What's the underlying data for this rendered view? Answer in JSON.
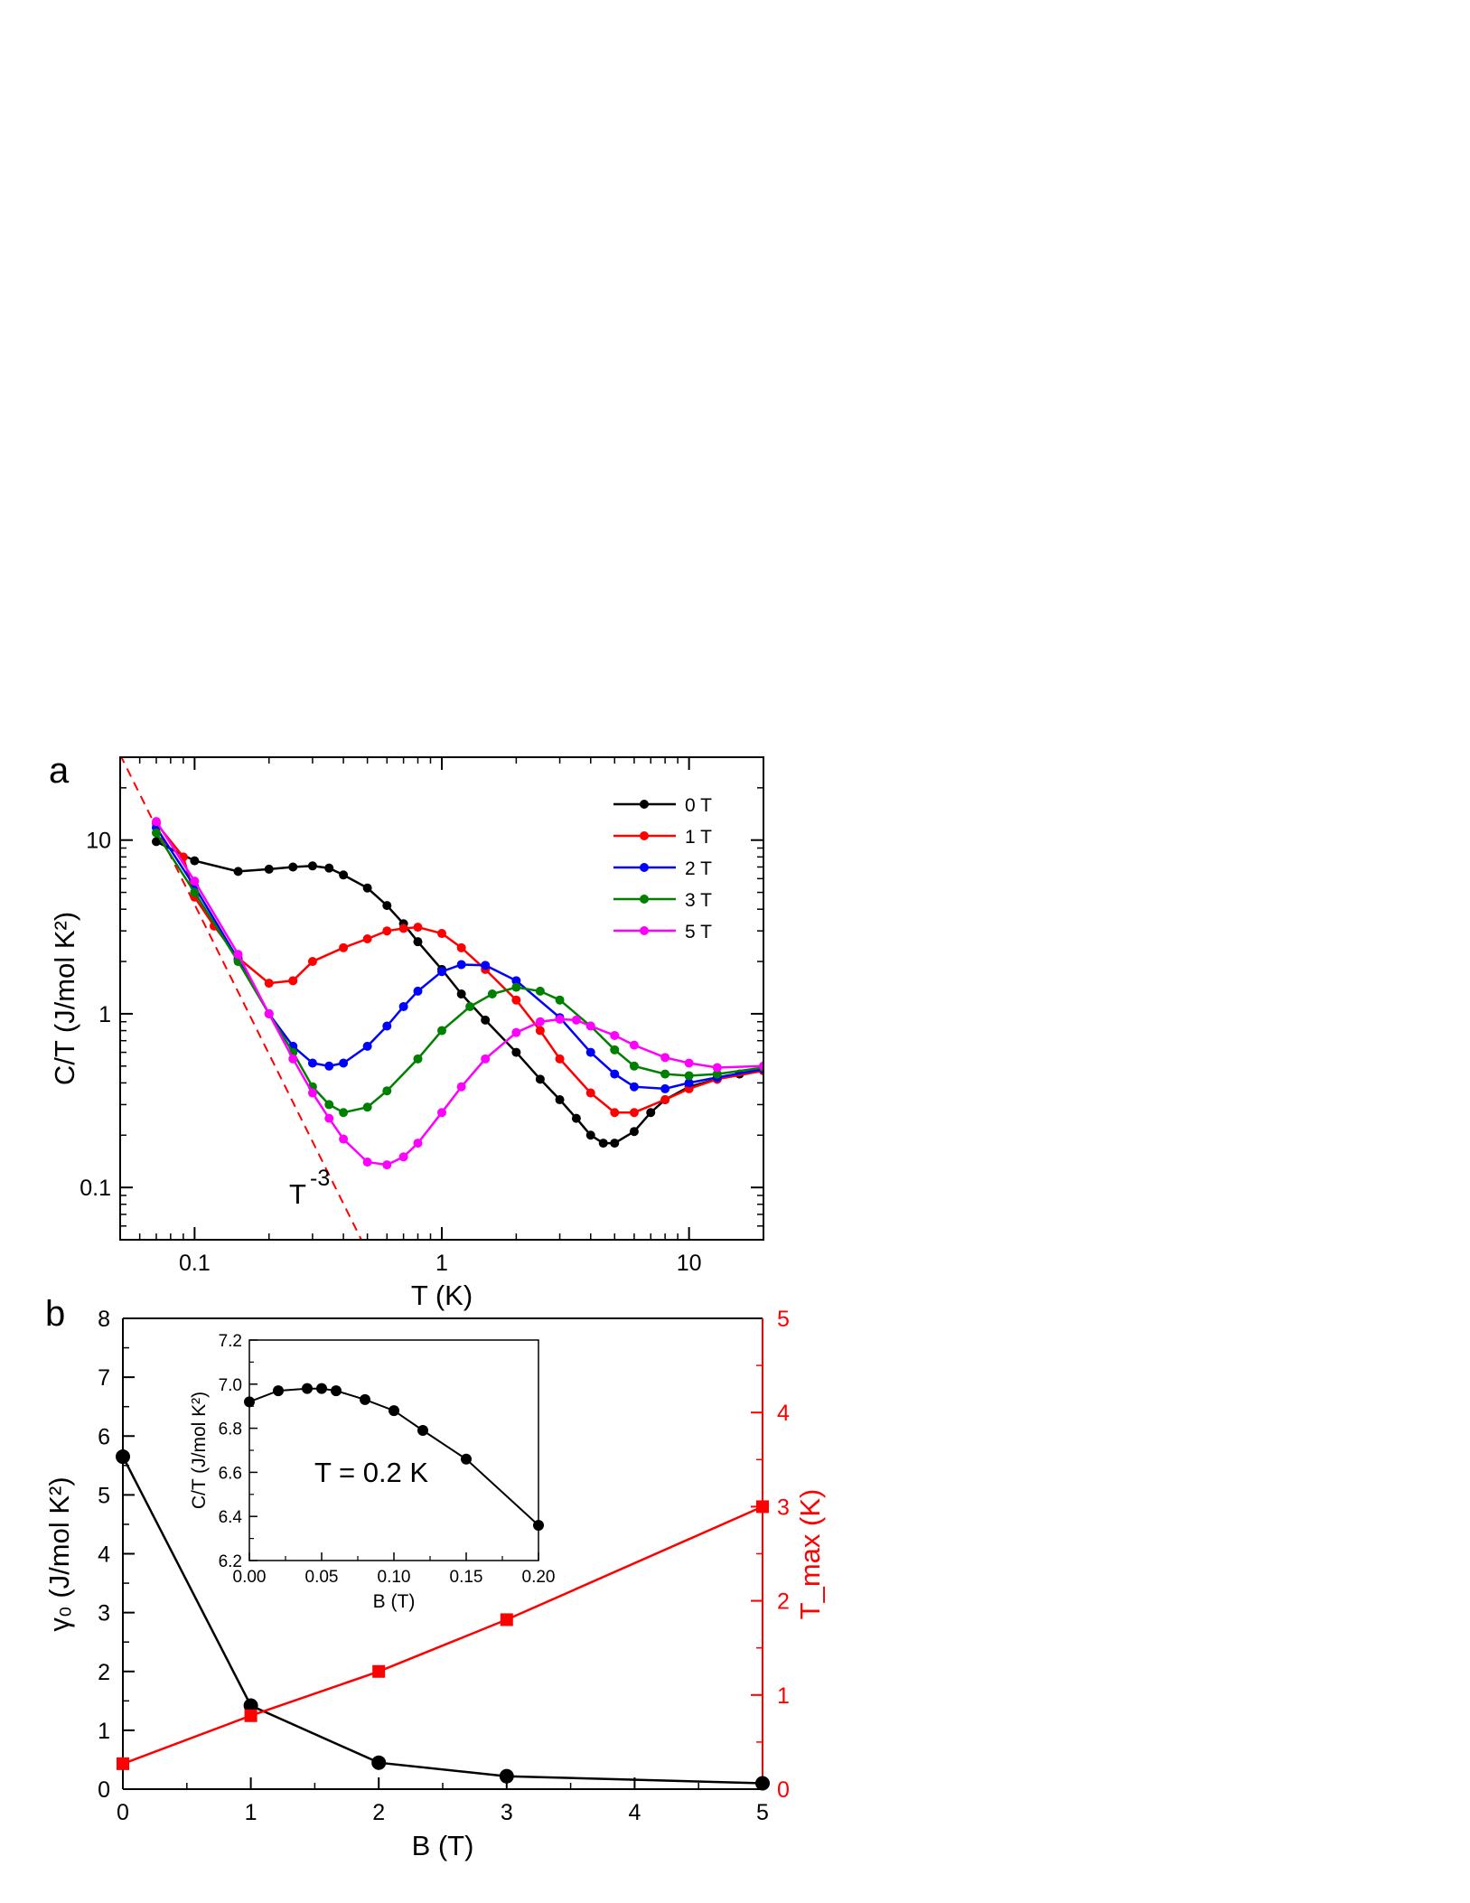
{
  "chart_data": [
    {
      "panel": "a",
      "type": "line",
      "xlabel": "T (K)",
      "ylabel": "C/T (J/mol K²)",
      "xscale": "log",
      "yscale": "log",
      "xlim": [
        0.05,
        20
      ],
      "ylim": [
        0.05,
        30
      ],
      "xtick_labels": [
        "0.1",
        "1",
        "10"
      ],
      "ytick_labels": [
        "0.1",
        "1",
        "10"
      ],
      "legend_position": "top-right",
      "annotation": {
        "text": "T",
        "superscript": "-3"
      },
      "fit_line": {
        "description": "power law",
        "exponent": -3,
        "style": "dashed",
        "color": "#ff0000",
        "x": [
          0.05,
          0.62
        ],
        "y": [
          31,
          0.023
        ]
      },
      "series": [
        {
          "name": "0 T",
          "color": "#000000",
          "points": [
            [
              0.07,
              9.8
            ],
            [
              0.1,
              7.6
            ],
            [
              0.15,
              6.6
            ],
            [
              0.2,
              6.8
            ],
            [
              0.25,
              7.0
            ],
            [
              0.3,
              7.1
            ],
            [
              0.35,
              6.9
            ],
            [
              0.4,
              6.3
            ],
            [
              0.5,
              5.3
            ],
            [
              0.6,
              4.2
            ],
            [
              0.7,
              3.3
            ],
            [
              0.8,
              2.6
            ],
            [
              1.0,
              1.8
            ],
            [
              1.2,
              1.3
            ],
            [
              1.5,
              0.92
            ],
            [
              2.0,
              0.6
            ],
            [
              2.5,
              0.42
            ],
            [
              3.0,
              0.32
            ],
            [
              3.5,
              0.25
            ],
            [
              4.0,
              0.2
            ],
            [
              4.5,
              0.18
            ],
            [
              5.0,
              0.18
            ],
            [
              6.0,
              0.21
            ],
            [
              7.0,
              0.27
            ],
            [
              8.0,
              0.32
            ],
            [
              10.0,
              0.38
            ],
            [
              13.0,
              0.42
            ],
            [
              16.0,
              0.45
            ],
            [
              20.0,
              0.47
            ]
          ]
        },
        {
          "name": "1 T",
          "color": "#ff0000",
          "points": [
            [
              0.07,
              12.5
            ],
            [
              0.09,
              8.0
            ],
            [
              0.1,
              4.7
            ],
            [
              0.12,
              3.2
            ],
            [
              0.15,
              2.1
            ],
            [
              0.2,
              1.5
            ],
            [
              0.25,
              1.55
            ],
            [
              0.3,
              2.0
            ],
            [
              0.4,
              2.4
            ],
            [
              0.5,
              2.7
            ],
            [
              0.6,
              3.0
            ],
            [
              0.7,
              3.1
            ],
            [
              0.8,
              3.15
            ],
            [
              1.0,
              2.9
            ],
            [
              1.2,
              2.4
            ],
            [
              1.5,
              1.8
            ],
            [
              2.0,
              1.2
            ],
            [
              2.5,
              0.8
            ],
            [
              3.0,
              0.55
            ],
            [
              4.0,
              0.35
            ],
            [
              5.0,
              0.27
            ],
            [
              6.0,
              0.27
            ],
            [
              8.0,
              0.32
            ],
            [
              10.0,
              0.37
            ],
            [
              13.0,
              0.42
            ],
            [
              20.0,
              0.47
            ]
          ]
        },
        {
          "name": "2 T",
          "color": "#0000ff",
          "points": [
            [
              0.07,
              11.8
            ],
            [
              0.1,
              5.4
            ],
            [
              0.15,
              2.05
            ],
            [
              0.2,
              1.0
            ],
            [
              0.25,
              0.65
            ],
            [
              0.3,
              0.52
            ],
            [
              0.35,
              0.5
            ],
            [
              0.4,
              0.52
            ],
            [
              0.5,
              0.65
            ],
            [
              0.6,
              0.85
            ],
            [
              0.7,
              1.1
            ],
            [
              0.8,
              1.35
            ],
            [
              1.0,
              1.75
            ],
            [
              1.2,
              1.92
            ],
            [
              1.5,
              1.9
            ],
            [
              2.0,
              1.55
            ],
            [
              3.0,
              0.95
            ],
            [
              4.0,
              0.6
            ],
            [
              5.0,
              0.45
            ],
            [
              6.0,
              0.38
            ],
            [
              8.0,
              0.37
            ],
            [
              10.0,
              0.4
            ],
            [
              13.0,
              0.43
            ],
            [
              20.0,
              0.48
            ]
          ]
        },
        {
          "name": "3 T",
          "color": "#008000",
          "points": [
            [
              0.07,
              11.0
            ],
            [
              0.1,
              5.0
            ],
            [
              0.15,
              2.0
            ],
            [
              0.2,
              1.0
            ],
            [
              0.25,
              0.6
            ],
            [
              0.3,
              0.38
            ],
            [
              0.35,
              0.3
            ],
            [
              0.4,
              0.27
            ],
            [
              0.5,
              0.29
            ],
            [
              0.6,
              0.36
            ],
            [
              0.8,
              0.55
            ],
            [
              1.0,
              0.8
            ],
            [
              1.3,
              1.1
            ],
            [
              1.6,
              1.3
            ],
            [
              2.0,
              1.42
            ],
            [
              2.5,
              1.35
            ],
            [
              3.0,
              1.2
            ],
            [
              4.0,
              0.85
            ],
            [
              5.0,
              0.62
            ],
            [
              6.0,
              0.5
            ],
            [
              8.0,
              0.45
            ],
            [
              10.0,
              0.44
            ],
            [
              13.0,
              0.45
            ],
            [
              20.0,
              0.49
            ]
          ]
        },
        {
          "name": "5 T",
          "color": "#ff00ff",
          "points": [
            [
              0.07,
              12.8
            ],
            [
              0.1,
              5.8
            ],
            [
              0.15,
              2.2
            ],
            [
              0.2,
              1.0
            ],
            [
              0.25,
              0.55
            ],
            [
              0.3,
              0.35
            ],
            [
              0.35,
              0.25
            ],
            [
              0.4,
              0.19
            ],
            [
              0.5,
              0.14
            ],
            [
              0.6,
              0.135
            ],
            [
              0.7,
              0.15
            ],
            [
              0.8,
              0.18
            ],
            [
              1.0,
              0.27
            ],
            [
              1.2,
              0.38
            ],
            [
              1.5,
              0.55
            ],
            [
              2.0,
              0.78
            ],
            [
              2.5,
              0.9
            ],
            [
              3.0,
              0.93
            ],
            [
              3.5,
              0.92
            ],
            [
              4.0,
              0.85
            ],
            [
              5.0,
              0.75
            ],
            [
              6.0,
              0.66
            ],
            [
              8.0,
              0.56
            ],
            [
              10.0,
              0.52
            ],
            [
              13.0,
              0.49
            ],
            [
              20.0,
              0.5
            ]
          ]
        }
      ]
    },
    {
      "panel": "b",
      "type": "line",
      "xlabel": "B (T)",
      "ylabel_left": "γ₀ (J/mol K²)",
      "ylabel_right": "T_max (K)",
      "xlim": [
        0,
        5
      ],
      "ylim_left": [
        0,
        8
      ],
      "ylim_right": [
        0,
        5
      ],
      "xtick_labels": [
        "0",
        "1",
        "2",
        "3",
        "4",
        "5"
      ],
      "ytick_labels_left": [
        "0",
        "1",
        "2",
        "3",
        "4",
        "5",
        "6",
        "7",
        "8"
      ],
      "ytick_labels_right": [
        "0",
        "1",
        "2",
        "3",
        "4",
        "5"
      ],
      "series": [
        {
          "axis": "left",
          "color": "#000000",
          "marker": "circle",
          "x": [
            0,
            1,
            2,
            3,
            5
          ],
          "y": [
            5.65,
            1.42,
            0.45,
            0.22,
            0.1
          ]
        },
        {
          "axis": "right",
          "color": "#ff0000",
          "marker": "square",
          "x": [
            0,
            1,
            2,
            3,
            5
          ],
          "y": [
            0.27,
            0.78,
            1.25,
            1.8,
            3.0
          ]
        }
      ]
    },
    {
      "panel": "b-inset",
      "type": "line",
      "xlabel": "B (T)",
      "ylabel": "C/T (J/mol K²)",
      "annotation": "T = 0.2 K",
      "xlim": [
        0,
        0.2
      ],
      "ylim": [
        6.2,
        7.2
      ],
      "xtick_labels": [
        "0.00",
        "0.05",
        "0.10",
        "0.15",
        "0.20"
      ],
      "ytick_labels": [
        "6.2",
        "6.4",
        "6.6",
        "6.8",
        "7.0",
        "7.2"
      ],
      "series": [
        {
          "color": "#000000",
          "marker": "circle",
          "x": [
            0,
            0.02,
            0.04,
            0.05,
            0.06,
            0.08,
            0.1,
            0.12,
            0.15,
            0.2
          ],
          "y": [
            6.92,
            6.97,
            6.98,
            6.98,
            6.97,
            6.93,
            6.88,
            6.79,
            6.66,
            6.36
          ]
        }
      ]
    }
  ]
}
